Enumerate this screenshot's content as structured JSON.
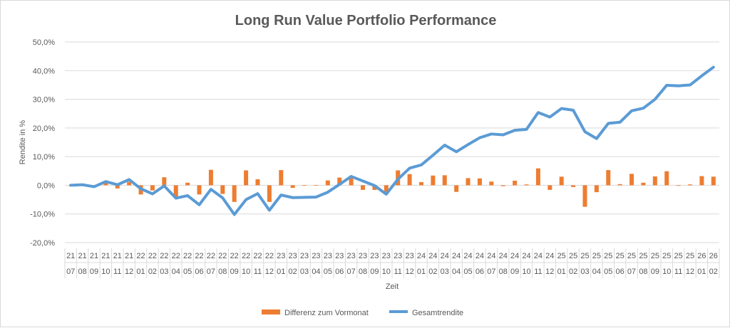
{
  "chart_data": {
    "type": "bar+line",
    "title": "Long Run Value Portfolio Performance",
    "xlabel": "Zeit",
    "ylabel": "Rendite in %",
    "ylim": [
      -20,
      50
    ],
    "yticks": [
      "-20,0%",
      "-10,0%",
      "0,0%",
      "10,0%",
      "20,0%",
      "30,0%",
      "40,0%",
      "50,0%"
    ],
    "ytick_values": [
      -20,
      -10,
      0,
      10,
      20,
      30,
      40,
      50
    ],
    "grid": true,
    "legend_position": "bottom",
    "categories_year": [
      "21",
      "21",
      "21",
      "21",
      "21",
      "21",
      "22",
      "22",
      "22",
      "22",
      "22",
      "22",
      "22",
      "22",
      "22",
      "22",
      "22",
      "22",
      "23",
      "23",
      "23",
      "23",
      "23",
      "23",
      "23",
      "23",
      "23",
      "23",
      "23",
      "23",
      "24",
      "24",
      "24",
      "24",
      "24",
      "24",
      "24",
      "24",
      "24",
      "24",
      "24",
      "24",
      "25",
      "25",
      "25",
      "25",
      "25",
      "25",
      "25",
      "25",
      "25",
      "25",
      "25",
      "25",
      "26",
      "26"
    ],
    "categories_month": [
      "07",
      "08",
      "09",
      "10",
      "11",
      "12",
      "01",
      "02",
      "03",
      "04",
      "05",
      "06",
      "07",
      "08",
      "09",
      "10",
      "11",
      "12",
      "01",
      "02",
      "03",
      "04",
      "05",
      "06",
      "07",
      "08",
      "09",
      "10",
      "11",
      "12",
      "01",
      "02",
      "03",
      "04",
      "05",
      "06",
      "07",
      "08",
      "09",
      "10",
      "11",
      "12",
      "01",
      "02",
      "03",
      "04",
      "05",
      "06",
      "07",
      "08",
      "09",
      "10",
      "11",
      "12",
      "01",
      "02"
    ],
    "series": [
      {
        "name": "Differenz zum Vormonat",
        "type": "bar",
        "color": "#ED7D31",
        "values": [
          0,
          0.2,
          -0.7,
          0.8,
          -1.1,
          1.2,
          -3.2,
          -1.8,
          2.8,
          -4.3,
          0.9,
          -3.2,
          5.4,
          -3.0,
          -5.8,
          5.2,
          2.1,
          -5.8,
          5.3,
          -0.9,
          0.1,
          0.1,
          1.7,
          2.7,
          2.8,
          -1.6,
          -1.6,
          -3.0,
          5.2,
          3.9,
          1.1,
          3.4,
          3.5,
          -2.3,
          2.5,
          2.4,
          1.3,
          -0.3,
          1.6,
          0.3,
          5.9,
          -1.6,
          3.0,
          -0.6,
          -7.5,
          -2.4,
          5.3,
          0.4,
          4.0,
          0.9,
          3.1,
          4.9,
          -0.2,
          0.3,
          3.2,
          3.0
        ]
      },
      {
        "name": "Gesamtrendite",
        "type": "line",
        "color": "#5B9BD5",
        "values": [
          0,
          0.2,
          -0.5,
          1.3,
          0.2,
          2.0,
          -1.2,
          -3.0,
          -0.2,
          -4.5,
          -3.6,
          -6.8,
          -1.4,
          -4.4,
          -10.2,
          -5.0,
          -2.9,
          -8.7,
          -3.4,
          -4.3,
          -4.2,
          -4.1,
          -2.4,
          0.3,
          3.1,
          1.5,
          -0.1,
          -3.1,
          2.1,
          6.0,
          7.1,
          10.5,
          14.0,
          11.7,
          14.2,
          16.6,
          17.9,
          17.6,
          19.2,
          19.5,
          25.4,
          23.8,
          26.8,
          26.2,
          18.7,
          16.3,
          21.6,
          22.0,
          26.0,
          26.9,
          30.0,
          34.9,
          34.7,
          35.0,
          38.2,
          41.2
        ]
      }
    ]
  }
}
